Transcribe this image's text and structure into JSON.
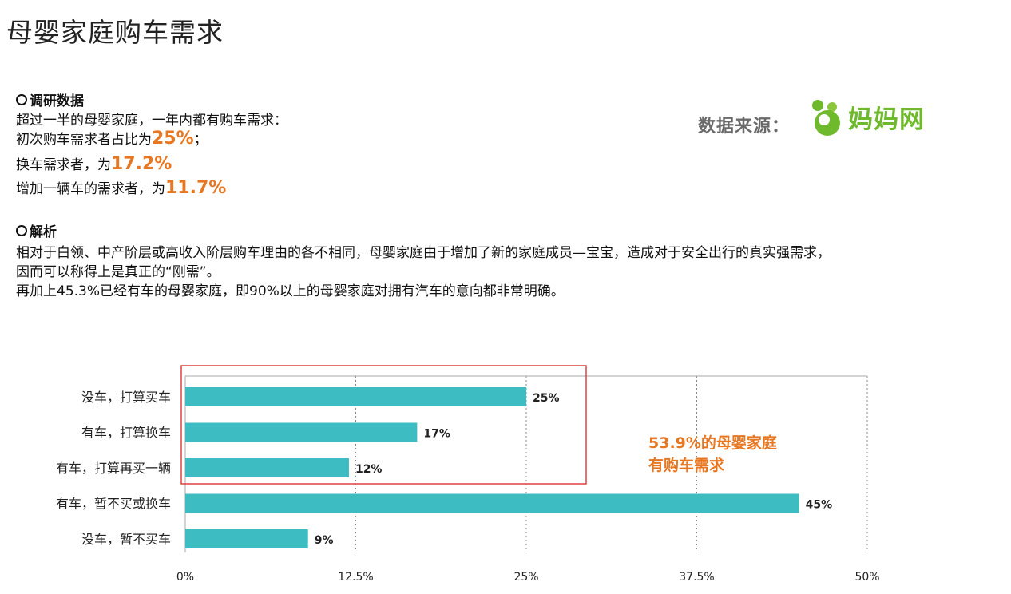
{
  "title": "母婴家庭购车需求",
  "survey": {
    "heading": "调研数据",
    "line1": "超过一半的母婴家庭，一年内都有购车需求：",
    "line2_prefix": "初次购车需求者占比为",
    "line2_value": "25%",
    "line2_suffix": "；",
    "line3_prefix": "换车需求者，为",
    "line3_value": "17.2%",
    "line4_prefix": "增加一辆车的需求者，为",
    "line4_value": "11.7%"
  },
  "analysis": {
    "heading": "解析",
    "line1": "相对于白领、中产阶层或高收入阶层购车理由的各不相同，母婴家庭由于增加了新的家庭成员—宝宝，造成对于安全出行的真实强需求，",
    "line2": "因而可以称得上是真正的“刚需”。",
    "line3": "再加上45.3%已经有车的母婴家庭，即90%以上的母婴家庭对拥有汽车的意向都非常明确。"
  },
  "source": {
    "label": "数据来源：",
    "logo_text": "妈妈网"
  },
  "note": {
    "line1": "53.9%的母婴家庭",
    "line2": "有购车需求"
  },
  "colors": {
    "bar": "#3dbdc2",
    "accent": "#e87722",
    "highlight_box": "#e04040",
    "logo_green": "#6fba2c"
  },
  "chart_data": {
    "type": "bar",
    "orientation": "horizontal",
    "categories": [
      "没车，打算买车",
      "有车，打算换车",
      "有车，打算再买一辆",
      "有车，暂不买或换车",
      "没车，暂不买车"
    ],
    "values": [
      25,
      17,
      12,
      45,
      9
    ],
    "data_labels": [
      "25%",
      "17%",
      "12%",
      "45%",
      "9%"
    ],
    "xlim": [
      0,
      50
    ],
    "x_ticks": [
      0,
      12.5,
      25,
      37.5,
      50
    ],
    "x_tick_labels": [
      "0%",
      "12.5%",
      "25%",
      "37.5%",
      "50%"
    ],
    "grid": "vertical dashed",
    "highlighted_categories": [
      "没车，打算买车",
      "有车，打算换车",
      "有车，打算再买一辆"
    ]
  }
}
